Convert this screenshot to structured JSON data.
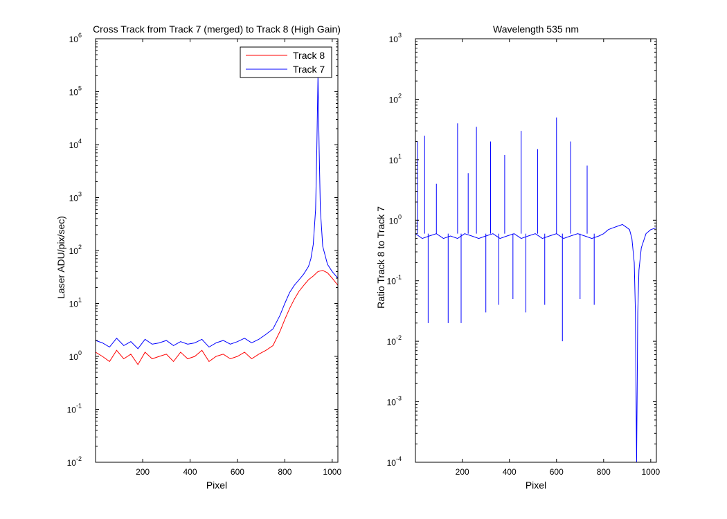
{
  "chart_data": [
    {
      "type": "line",
      "title": "Cross Track from Track 7 (merged) to Track 8 (High Gain)",
      "xlabel": "Pixel",
      "ylabel": "Laser ADU/pix/sec)",
      "xlim": [
        1,
        1024
      ],
      "ylim": [
        0.01,
        1000000
      ],
      "yscale": "log",
      "xticks": [
        200,
        400,
        600,
        800,
        1000
      ],
      "yticks": [
        {
          "base": "10",
          "exp": "-2"
        },
        {
          "base": "10",
          "exp": "-1"
        },
        {
          "base": "10",
          "exp": "0"
        },
        {
          "base": "10",
          "exp": "1"
        },
        {
          "base": "10",
          "exp": "2"
        },
        {
          "base": "10",
          "exp": "3"
        },
        {
          "base": "10",
          "exp": "4"
        },
        {
          "base": "10",
          "exp": "5"
        },
        {
          "base": "10",
          "exp": "6"
        }
      ],
      "legend": {
        "placement": "top-right"
      },
      "series": [
        {
          "name": "Track 8",
          "color": "#ff0000",
          "x": [
            1,
            30,
            60,
            90,
            120,
            150,
            180,
            210,
            240,
            270,
            300,
            330,
            360,
            390,
            420,
            450,
            480,
            510,
            540,
            570,
            600,
            630,
            660,
            690,
            720,
            750,
            780,
            800,
            820,
            840,
            860,
            880,
            900,
            920,
            940,
            960,
            980,
            1000,
            1024
          ],
          "y": [
            1.2,
            1.0,
            0.8,
            1.3,
            0.9,
            1.1,
            0.7,
            1.2,
            0.9,
            1.0,
            1.1,
            0.8,
            1.2,
            0.9,
            1.0,
            1.3,
            0.8,
            1.0,
            1.1,
            0.9,
            1.0,
            1.2,
            0.9,
            1.1,
            1.3,
            1.6,
            3.0,
            5.0,
            8.0,
            12.0,
            17.0,
            22.0,
            28.0,
            33.0,
            40.0,
            42.0,
            38.0,
            30.0,
            22.0
          ]
        },
        {
          "name": "Track 7",
          "color": "#0000ff",
          "x": [
            1,
            30,
            60,
            90,
            120,
            150,
            180,
            210,
            240,
            270,
            300,
            330,
            360,
            390,
            420,
            450,
            480,
            510,
            540,
            570,
            600,
            630,
            660,
            690,
            720,
            750,
            780,
            800,
            820,
            840,
            860,
            880,
            900,
            910,
            920,
            930,
            935,
            940,
            945,
            950,
            960,
            980,
            1000,
            1024
          ],
          "y": [
            2.0,
            1.8,
            1.5,
            2.2,
            1.6,
            1.9,
            1.4,
            2.1,
            1.7,
            1.8,
            2.0,
            1.6,
            1.9,
            1.7,
            1.8,
            2.1,
            1.5,
            1.8,
            2.0,
            1.7,
            1.9,
            2.2,
            1.8,
            2.1,
            2.6,
            3.3,
            6.0,
            10.0,
            16.0,
            22.0,
            28.0,
            36.0,
            50.0,
            70.0,
            130.0,
            600.0,
            8000.0,
            200000.0,
            8000.0,
            600.0,
            120.0,
            55.0,
            40.0,
            30.0
          ]
        }
      ]
    },
    {
      "type": "line",
      "title": "Wavelength 535 nm",
      "xlabel": "Pixel",
      "ylabel": "Ratio Track 8 to Track 7",
      "xlim": [
        1,
        1024
      ],
      "ylim": [
        0.0001,
        1000
      ],
      "yscale": "log",
      "xticks": [
        200,
        400,
        600,
        800,
        1000
      ],
      "yticks": [
        {
          "base": "10",
          "exp": "-4"
        },
        {
          "base": "10",
          "exp": "-3"
        },
        {
          "base": "10",
          "exp": "-2"
        },
        {
          "base": "10",
          "exp": "-1"
        },
        {
          "base": "10",
          "exp": "0"
        },
        {
          "base": "10",
          "exp": "1"
        },
        {
          "base": "10",
          "exp": "2"
        },
        {
          "base": "10",
          "exp": "3"
        }
      ],
      "series": [
        {
          "color": "#0000ff",
          "x": [
            1,
            30,
            60,
            90,
            120,
            150,
            180,
            210,
            240,
            270,
            300,
            330,
            360,
            390,
            420,
            450,
            480,
            510,
            540,
            570,
            600,
            630,
            660,
            690,
            720,
            750,
            780,
            800,
            820,
            840,
            860,
            880,
            900,
            910,
            920,
            930,
            935,
            940,
            945,
            950,
            960,
            980,
            1000,
            1024
          ],
          "y": [
            0.6,
            0.5,
            0.55,
            0.6,
            0.5,
            0.55,
            0.5,
            0.6,
            0.55,
            0.5,
            0.55,
            0.6,
            0.5,
            0.55,
            0.6,
            0.5,
            0.55,
            0.6,
            0.5,
            0.55,
            0.6,
            0.5,
            0.55,
            0.6,
            0.55,
            0.5,
            0.55,
            0.6,
            0.7,
            0.75,
            0.8,
            0.85,
            0.75,
            0.7,
            0.5,
            0.2,
            0.03,
            0.0001,
            0.03,
            0.15,
            0.35,
            0.6,
            0.7,
            0.75
          ]
        }
      ],
      "spikes": [
        {
          "x": 10,
          "y": 20
        },
        {
          "x": 40,
          "y": 25
        },
        {
          "x": 55,
          "y": 0.02
        },
        {
          "x": 90,
          "y": 4
        },
        {
          "x": 140,
          "y": 0.02
        },
        {
          "x": 180,
          "y": 40
        },
        {
          "x": 195,
          "y": 0.02
        },
        {
          "x": 225,
          "y": 6
        },
        {
          "x": 260,
          "y": 35
        },
        {
          "x": 300,
          "y": 0.03
        },
        {
          "x": 320,
          "y": 20
        },
        {
          "x": 355,
          "y": 0.04
        },
        {
          "x": 380,
          "y": 12
        },
        {
          "x": 415,
          "y": 0.05
        },
        {
          "x": 450,
          "y": 30
        },
        {
          "x": 470,
          "y": 0.03
        },
        {
          "x": 520,
          "y": 15
        },
        {
          "x": 550,
          "y": 0.04
        },
        {
          "x": 600,
          "y": 50
        },
        {
          "x": 625,
          "y": 0.01
        },
        {
          "x": 660,
          "y": 20
        },
        {
          "x": 700,
          "y": 0.05
        },
        {
          "x": 730,
          "y": 8
        },
        {
          "x": 760,
          "y": 0.04
        }
      ]
    }
  ]
}
